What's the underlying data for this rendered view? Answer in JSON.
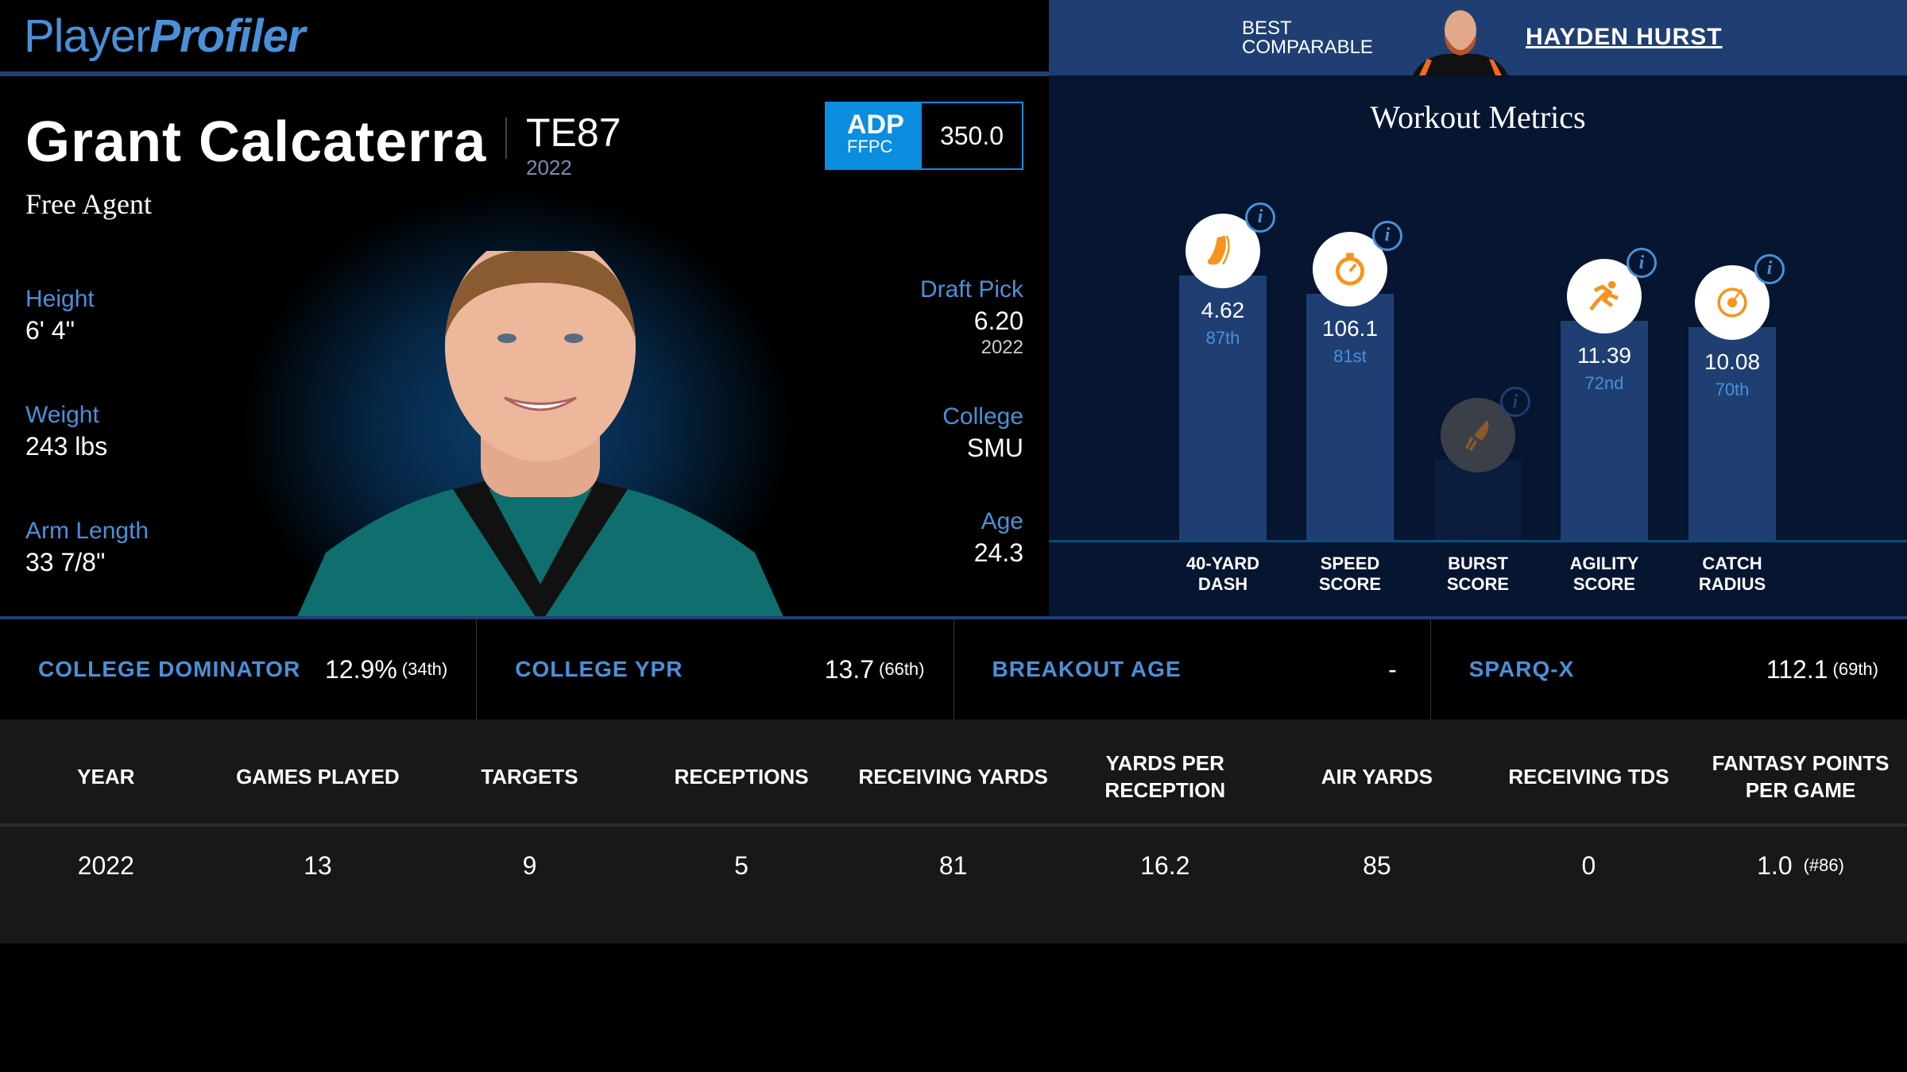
{
  "brand": {
    "logo_light": "Player",
    "logo_bold": "Profiler"
  },
  "player": {
    "name": "Grant Calcaterra",
    "position_rank": "TE87",
    "position_year": "2022",
    "team": "Free Agent",
    "adp": {
      "label": "ADP",
      "source": "FFPC",
      "value": "350.0"
    },
    "height": {
      "label": "Height",
      "value": "6' 4\""
    },
    "weight": {
      "label": "Weight",
      "value": "243 lbs"
    },
    "arm": {
      "label": "Arm Length",
      "value": "33 7/8\""
    },
    "draft": {
      "label": "Draft Pick",
      "value": "6.20",
      "year": "2022"
    },
    "college": {
      "label": "College",
      "value": "SMU"
    },
    "age": {
      "label": "Age",
      "value": "24.3"
    }
  },
  "comparable": {
    "label_line1": "BEST",
    "label_line2": "COMPARABLE",
    "name": "HAYDEN HURST"
  },
  "workout": {
    "title": "Workout Metrics",
    "info_glyph": "i",
    "metrics": [
      {
        "icon": "shoe-icon",
        "value": "4.62",
        "pct_label": "87th",
        "percentile": 87,
        "label1": "40-YARD",
        "label2": "DASH"
      },
      {
        "icon": "stopwatch-icon",
        "value": "106.1",
        "pct_label": "81st",
        "percentile": 81,
        "label1": "SPEED",
        "label2": "SCORE"
      },
      {
        "icon": "rocket-icon",
        "value": "",
        "pct_label": "",
        "percentile": null,
        "label1": "BURST",
        "label2": "SCORE"
      },
      {
        "icon": "runner-icon",
        "value": "11.39",
        "pct_label": "72nd",
        "percentile": 72,
        "label1": "AGILITY",
        "label2": "SCORE"
      },
      {
        "icon": "target-icon",
        "value": "10.08",
        "pct_label": "70th",
        "percentile": 70,
        "label1": "CATCH",
        "label2": "RADIUS"
      }
    ]
  },
  "stats": [
    {
      "label": "COLLEGE DOMINATOR",
      "value": "12.9%",
      "pct": "(34th)"
    },
    {
      "label": "COLLEGE YPR",
      "value": "13.7",
      "pct": "(66th)"
    },
    {
      "label": "BREAKOUT AGE",
      "value": "-",
      "pct": ""
    },
    {
      "label": "SPARQ-X",
      "value": "112.1",
      "pct": "(69th)"
    }
  ],
  "table": {
    "headers": [
      "YEAR",
      "GAMES PLAYED",
      "TARGETS",
      "RECEPTIONS",
      "RECEIVING YARDS",
      "YARDS PER RECEPTION",
      "AIR YARDS",
      "RECEIVING TDS",
      "FANTASY POINTS PER GAME"
    ],
    "rows": [
      {
        "cells": [
          "2022",
          "13",
          "9",
          "5",
          "81",
          "16.2",
          "85",
          "0",
          "1.0"
        ],
        "rank": "(#86)"
      }
    ]
  },
  "colors": {
    "accent": "#4a90d9",
    "header_blue": "#1f3f73",
    "panel_navy": "#061530",
    "adp_blue": "#0b8de0",
    "icon_orange": "#f7931e"
  }
}
